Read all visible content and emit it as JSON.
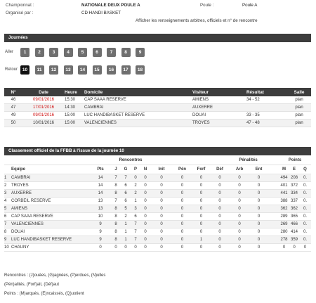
{
  "header": {
    "championnat_label": "Championnat :",
    "championnat_value": "NATIONALE DEUX POULE A",
    "organise_label": "Organisé par :",
    "organise_value": "CD HANDI BASKET",
    "poule_label": "Poule :",
    "poule_value": "Poule A",
    "show_info_link": "Afficher les renseignements arbitres, officiels et n° de rencontre"
  },
  "journees": {
    "title": "Journées",
    "aller_label": "Aller",
    "retour_label": "Retour",
    "aller": [
      "1",
      "2",
      "3",
      "4",
      "5",
      "6",
      "7",
      "8",
      "9"
    ],
    "retour": [
      "10",
      "11",
      "12",
      "13",
      "14",
      "15",
      "16",
      "17",
      "18"
    ],
    "active": "10"
  },
  "matches": {
    "headers": [
      "N°",
      "Date",
      "Heure",
      "Domicile",
      "Visiteur",
      "Résultat",
      "Salle"
    ],
    "rows": [
      {
        "no": "46",
        "date": "09/01/2016",
        "heure": "15:30",
        "domicile": "CAP SAAA RESERVE",
        "visiteur": "AMIENS",
        "resultat": "34 - 52",
        "salle": "plan",
        "date_red": true
      },
      {
        "no": "47",
        "date": "17/01/2016",
        "heure": "14:30",
        "domicile": "CAMBRAI",
        "visiteur": "AUXERRE",
        "resultat": "",
        "salle": "plan",
        "date_red": true
      },
      {
        "no": "49",
        "date": "09/01/2016",
        "heure": "15:00",
        "domicile": "LUC HANDIBASKET RESERVE",
        "visiteur": "DOUAI",
        "resultat": "33 - 35",
        "salle": "plan",
        "date_red": true
      },
      {
        "no": "50",
        "date": "10/01/2016",
        "heure": "15:00",
        "domicile": "VALENCIENNES",
        "visiteur": "TROYES",
        "resultat": "47 - 48",
        "salle": "plan",
        "date_red": false
      }
    ]
  },
  "standings": {
    "title": "Classement officiel de la FFBB à l'issue de la journée 10",
    "h_equipe": "Equipe",
    "h_pts": "Pts",
    "h_rencontres": "Rencontres",
    "h_j": "J",
    "h_g": "G",
    "h_p": "P",
    "h_n": "N",
    "h_init": "Init",
    "h_pen": "Pén",
    "h_forf": "Forf",
    "h_def": "Déf",
    "h_penalites": "Pénalités",
    "h_arb": "Arb",
    "h_ent": "Ent",
    "h_points": "Points",
    "h_m": "M",
    "h_e": "E",
    "h_q": "Q",
    "rows": [
      [
        "1",
        "CAMBRAI",
        "14",
        "7",
        "7",
        "0",
        "0",
        "0",
        "0",
        "0",
        "0",
        "0",
        "0",
        "494",
        "208",
        "0."
      ],
      [
        "2",
        "TROYES",
        "14",
        "8",
        "6",
        "2",
        "0",
        "0",
        "0",
        "0",
        "0",
        "0",
        "0",
        "401",
        "372",
        "0."
      ],
      [
        "3",
        "AUXERRE",
        "14",
        "8",
        "6",
        "2",
        "0",
        "0",
        "0",
        "0",
        "0",
        "0",
        "0",
        "441",
        "334",
        "0."
      ],
      [
        "4",
        "CORBEIL RESERVE",
        "13",
        "7",
        "6",
        "1",
        "0",
        "0",
        "0",
        "0",
        "0",
        "0",
        "0",
        "388",
        "337",
        "0."
      ],
      [
        "5",
        "AMIENS",
        "13",
        "8",
        "5",
        "3",
        "0",
        "0",
        "0",
        "0",
        "0",
        "0",
        "0",
        "362",
        "362",
        "0."
      ],
      [
        "6",
        "CAP SAAA RESERVE",
        "10",
        "8",
        "2",
        "6",
        "0",
        "0",
        "0",
        "0",
        "0",
        "0",
        "0",
        "289",
        "365",
        "0."
      ],
      [
        "7",
        "VALENCIENNES",
        "9",
        "8",
        "1",
        "7",
        "0",
        "0",
        "0",
        "0",
        "0",
        "0",
        "0",
        "269",
        "466",
        "0."
      ],
      [
        "8",
        "DOUAI",
        "9",
        "8",
        "1",
        "7",
        "0",
        "0",
        "0",
        "0",
        "0",
        "0",
        "0",
        "280",
        "414",
        "0."
      ],
      [
        "9",
        "LUC HANDIBASKET RESERVE",
        "9",
        "8",
        "1",
        "7",
        "0",
        "0",
        "0",
        "1",
        "0",
        "0",
        "0",
        "278",
        "359",
        "0."
      ],
      [
        "10",
        "CHAUNY",
        "0",
        "0",
        "0",
        "0",
        "0",
        "0",
        "0",
        "0",
        "0",
        "0",
        "0",
        "0",
        "0",
        "0"
      ]
    ]
  },
  "legend": {
    "line1": "Rencontres : (J)ouées, (G)agnées, (P)erdues, (N)ulles",
    "line2": "(Pén)alités, (Forf)ait, (Déf)aut",
    "line3": "Points : (M)arqués, (E)ncaissés, (Q)uotient"
  }
}
